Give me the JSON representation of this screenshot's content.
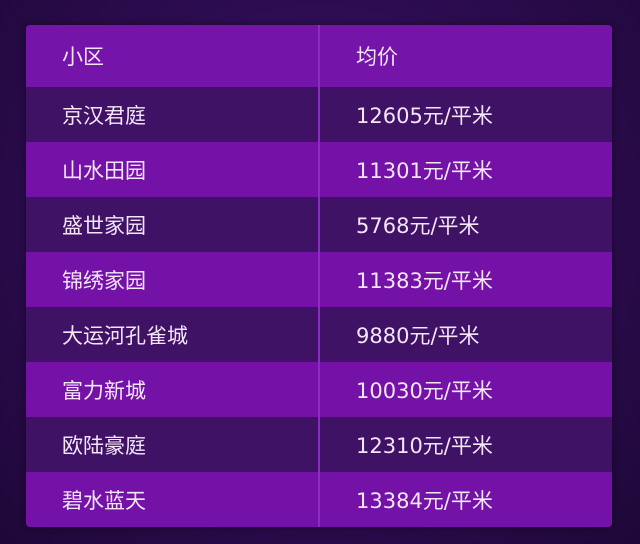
{
  "table": {
    "headers": [
      "小区",
      "均价"
    ],
    "rows": [
      {
        "name": "京汉君庭",
        "price": "12605元/平米"
      },
      {
        "name": "山水田园",
        "price": "11301元/平米"
      },
      {
        "name": "盛世家园",
        "price": "5768元/平米"
      },
      {
        "name": "锦绣家园",
        "price": "11383元/平米"
      },
      {
        "name": "大运河孔雀城",
        "price": "9880元/平米"
      },
      {
        "name": "富力新城",
        "price": "10030元/平米"
      },
      {
        "name": "欧陆豪庭",
        "price": "12310元/平米"
      },
      {
        "name": "碧水蓝天",
        "price": "13384元/平米"
      }
    ]
  },
  "colors": {
    "header": "#7414a9",
    "row_dark": "#3f1266",
    "row_light": "#7412a8",
    "background": "#2a0b4c"
  }
}
